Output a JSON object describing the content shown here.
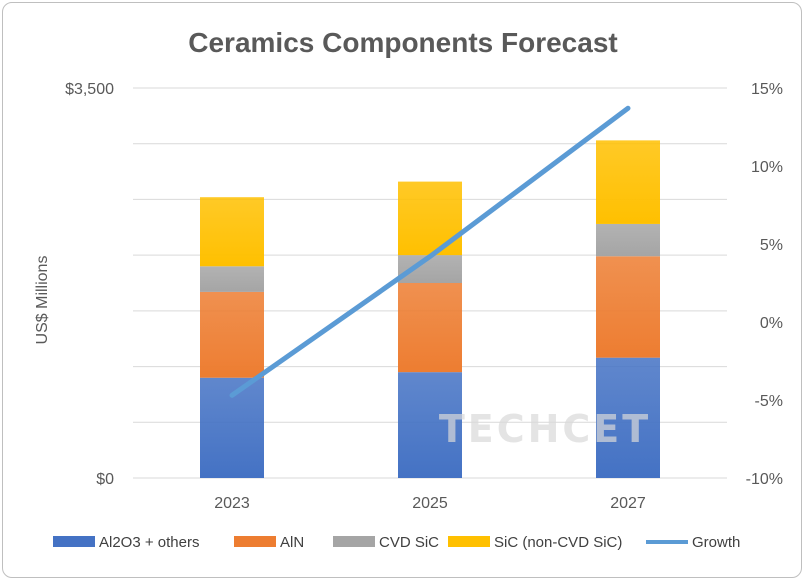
{
  "chart_data": {
    "type": "bar",
    "title": "Ceramics Components Forecast",
    "ylabel": "US$ Millions",
    "categories": [
      "2023",
      "2025",
      "2027"
    ],
    "ylim": [
      0,
      3500
    ],
    "left_ticks": [
      "$0",
      "$3,500"
    ],
    "right_ticks": [
      "-10%",
      "-5%",
      "0%",
      "5%",
      "10%",
      "15%"
    ],
    "right_ylim": [
      -10,
      15
    ],
    "stacked": true,
    "series": [
      {
        "name": "Al2O3 + others",
        "color": "#4472c4",
        "values": [
          900,
          950,
          1080
        ]
      },
      {
        "name": "AlN",
        "color": "#ed7d31",
        "values": [
          770,
          800,
          910
        ]
      },
      {
        "name": "CVD SiC",
        "color": "#a5a5a5",
        "values": [
          230,
          250,
          290
        ]
      },
      {
        "name": "SiC (non-CVD SiC)",
        "color": "#ffc000",
        "values": [
          620,
          660,
          750
        ]
      }
    ],
    "line_series": {
      "name": "Growth",
      "color": "#5b9bd5",
      "values": [
        -4.7,
        4.2,
        13.7
      ],
      "axis": "right"
    },
    "grid": true,
    "legend_position": "bottom",
    "watermark": "TECHCET"
  }
}
